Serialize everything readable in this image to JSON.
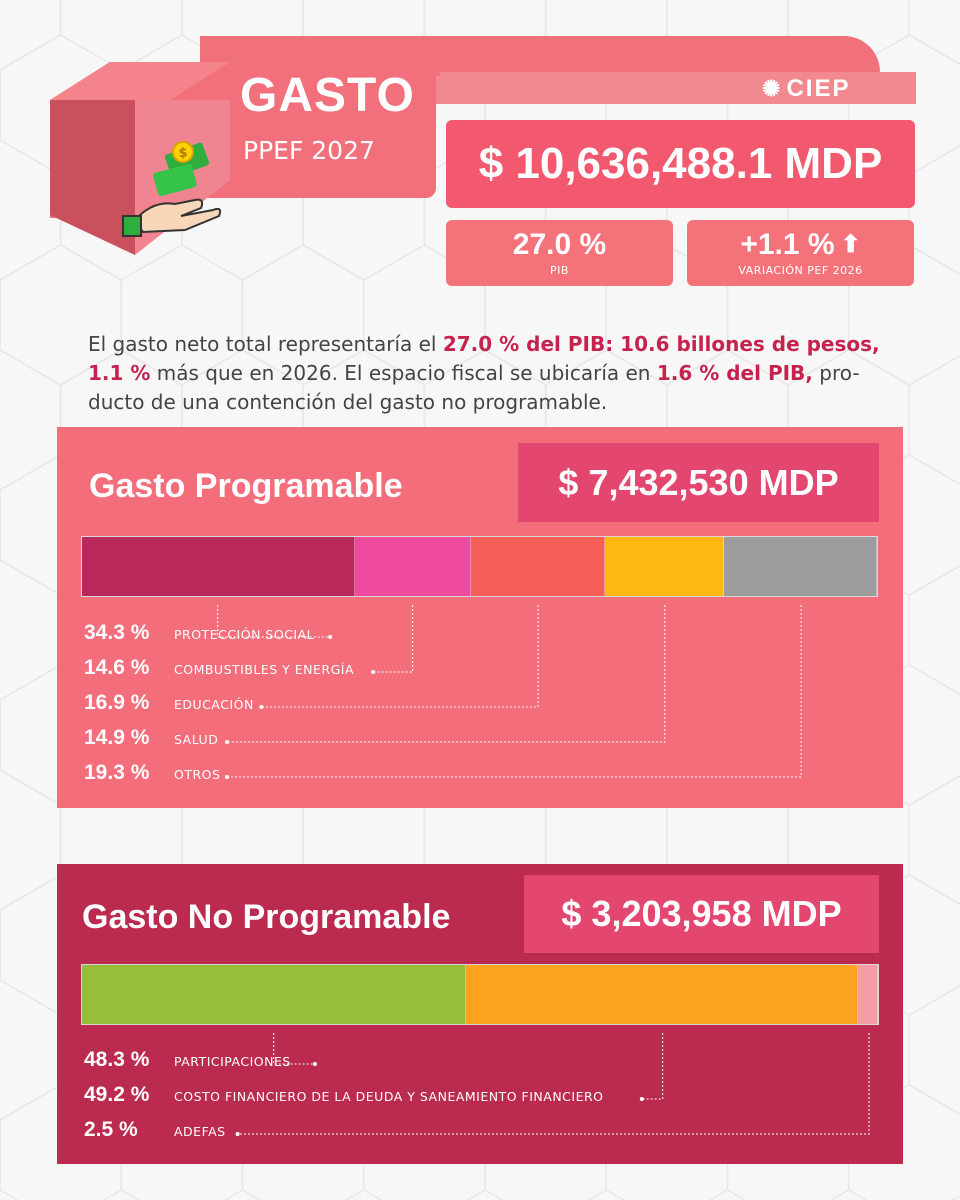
{
  "header": {
    "title": "GASTO",
    "subtitle": "PPEF 2027",
    "logo_text": "CIEP",
    "icon": "money-hand-icon",
    "total": "$ 10,636,488.1 MDP",
    "pib_value": "27.0 %",
    "pib_label": "PIB",
    "variation_value": "+1.1 %",
    "variation_label": "VARIACIÓN PEF 2026",
    "variation_icon": "arrow-up-icon"
  },
  "summary": {
    "t1": "El gasto neto total representaría el ",
    "b1": "27.0 % del PIB: 10.6 billones de pesos,",
    "t2": " ",
    "b2": "1.1 %",
    "t3": " más que en 2026. El espacio fiscal se ubicaría en ",
    "b3": "1.6 % del PIB,",
    "t4": " pro-ducto de una contención del gasto no programable."
  },
  "colors": {
    "header_pink": "#f2707c",
    "total_box": "#f2586e",
    "section_programable": "#f36d7b",
    "section_no_programable": "#bb2a4f",
    "amount_box": "#e3466e"
  },
  "chart_data": [
    {
      "type": "bar",
      "orientation": "stacked-horizontal",
      "title": "Gasto Programable",
      "total": "$ 7,432,530 MDP",
      "unit": "%",
      "categories": [
        "PROTECCIÓN SOCIAL",
        "COMBUSTIBLES Y ENERGÍA",
        "EDUCACIÓN",
        "SALUD",
        "OTROS"
      ],
      "values": [
        34.3,
        14.6,
        16.9,
        14.9,
        19.3
      ],
      "labels": [
        "34.3 %",
        "14.6 %",
        "16.9 %",
        "14.9 %",
        "19.3 %"
      ],
      "colors": [
        "#b8285b",
        "#ef4b9e",
        "#f55f58",
        "#fdb813",
        "#9d9d9d"
      ]
    },
    {
      "type": "bar",
      "orientation": "stacked-horizontal",
      "title": "Gasto No Programable",
      "total": "$ 3,203,958 MDP",
      "unit": "%",
      "categories": [
        "PARTICIPACIONES",
        "COSTO FINANCIERO DE LA DEUDA Y SANEAMIENTO FINANCIERO",
        "ADEFAS"
      ],
      "values": [
        48.3,
        49.2,
        2.5
      ],
      "labels": [
        "48.3 %",
        "49.2 %",
        "2.5 %"
      ],
      "colors": [
        "#96be3b",
        "#fca31f",
        "#f79ba6"
      ]
    }
  ]
}
